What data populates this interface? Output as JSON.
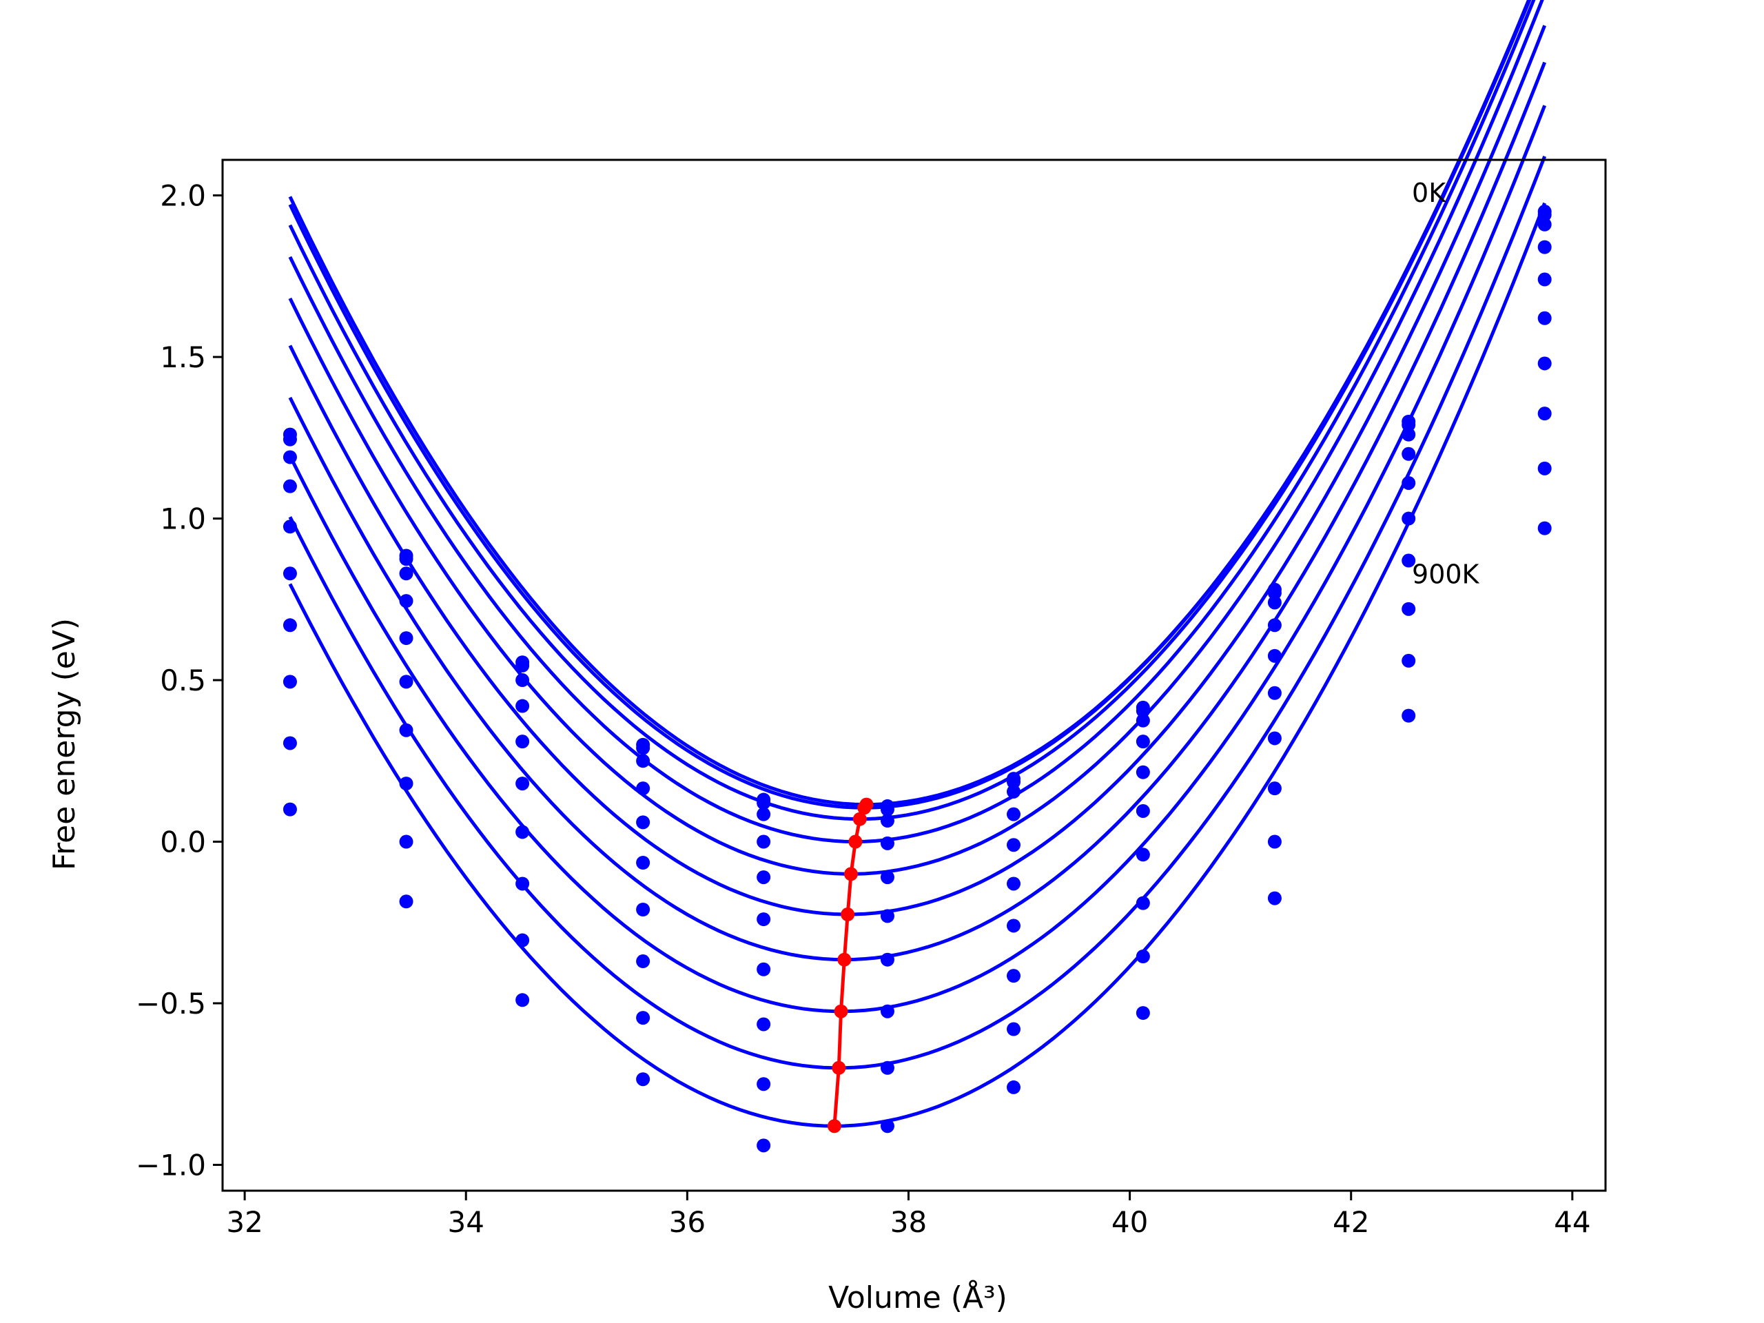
{
  "chart_data": {
    "type": "scatter",
    "xlabel": "Volume (Å³)",
    "ylabel": "Free energy (eV)",
    "xlim": [
      31.8,
      44.3
    ],
    "ylim": [
      -1.08,
      2.11
    ],
    "x_ticks": [
      {
        "value": 32,
        "label": "32"
      },
      {
        "value": 34,
        "label": "34"
      },
      {
        "value": 36,
        "label": "36"
      },
      {
        "value": 38,
        "label": "38"
      },
      {
        "value": 40,
        "label": "40"
      },
      {
        "value": 42,
        "label": "42"
      },
      {
        "value": 44,
        "label": "44"
      }
    ],
    "y_ticks": [
      {
        "value": -1.0,
        "label": "−1.0"
      },
      {
        "value": -0.5,
        "label": "−0.5"
      },
      {
        "value": 0.0,
        "label": "0.0"
      },
      {
        "value": 0.5,
        "label": "0.5"
      },
      {
        "value": 1.0,
        "label": "1.0"
      },
      {
        "value": 1.5,
        "label": "1.5"
      },
      {
        "value": 2.0,
        "label": "2.0"
      }
    ],
    "grid": false,
    "annotations": [
      {
        "text": "0K",
        "x": 42.55,
        "y": 2.01
      },
      {
        "text": "900K",
        "x": 42.55,
        "y": 0.83
      }
    ],
    "volumes": [
      32.41,
      33.46,
      34.51,
      35.6,
      36.69,
      37.81,
      38.95,
      40.12,
      41.31,
      42.52,
      43.75
    ],
    "colors": {
      "fit": "#0000ff",
      "points": "#0000ff",
      "minimum": "#ff0000"
    },
    "series": [
      {
        "fit_min_v": 37.62,
        "fit_min_f": 0.115,
        "fit_curvature": 0.0693,
        "points": [
          1.26,
          0.885,
          0.555,
          0.3,
          0.13,
          0.11,
          0.195,
          0.415,
          0.78,
          1.3,
          1.95
        ]
      },
      {
        "fit_min_v": 37.6,
        "fit_min_f": 0.105,
        "fit_curvature": 0.0693,
        "points": [
          1.245,
          0.875,
          0.545,
          0.29,
          0.12,
          0.1,
          0.185,
          0.405,
          0.77,
          1.29,
          1.94
        ]
      },
      {
        "fit_min_v": 37.56,
        "fit_min_f": 0.07,
        "fit_curvature": 0.0693,
        "points": [
          1.19,
          0.83,
          0.5,
          0.25,
          0.085,
          0.065,
          0.155,
          0.375,
          0.74,
          1.26,
          1.91
        ]
      },
      {
        "fit_min_v": 37.52,
        "fit_min_f": 0.0,
        "fit_curvature": 0.0693,
        "points": [
          1.1,
          0.745,
          0.42,
          0.165,
          0.0,
          -0.005,
          0.085,
          0.31,
          0.67,
          1.2,
          1.84
        ]
      },
      {
        "fit_min_v": 37.48,
        "fit_min_f": -0.1,
        "fit_curvature": 0.0693,
        "points": [
          0.975,
          0.63,
          0.31,
          0.06,
          -0.11,
          -0.11,
          -0.01,
          0.215,
          0.575,
          1.11,
          1.74
        ]
      },
      {
        "fit_min_v": 37.45,
        "fit_min_f": -0.225,
        "fit_curvature": 0.0693,
        "points": [
          0.83,
          0.495,
          0.18,
          -0.065,
          -0.24,
          -0.23,
          -0.13,
          0.095,
          0.46,
          1.0,
          1.62
        ]
      },
      {
        "fit_min_v": 37.42,
        "fit_min_f": -0.365,
        "fit_curvature": 0.0693,
        "points": [
          0.67,
          0.345,
          0.03,
          -0.21,
          -0.395,
          -0.365,
          -0.26,
          -0.04,
          0.32,
          0.87,
          1.48
        ]
      },
      {
        "fit_min_v": 37.39,
        "fit_min_f": -0.525,
        "fit_curvature": 0.0693,
        "points": [
          0.495,
          0.18,
          -0.13,
          -0.37,
          -0.565,
          -0.525,
          -0.415,
          -0.19,
          0.165,
          0.72,
          1.325
        ]
      },
      {
        "fit_min_v": 37.37,
        "fit_min_f": -0.7,
        "fit_curvature": 0.0693,
        "points": [
          0.305,
          0.0,
          -0.305,
          -0.545,
          -0.75,
          -0.7,
          -0.58,
          -0.355,
          0.0,
          0.56,
          1.155
        ]
      },
      {
        "fit_min_v": 37.33,
        "fit_min_f": -0.88,
        "fit_curvature": 0.0693,
        "points": [
          0.1,
          -0.185,
          -0.49,
          -0.735,
          -0.94,
          -0.88,
          -0.76,
          -0.53,
          -0.175,
          0.39,
          0.97
        ]
      }
    ],
    "minimum_curve": {
      "volume": [
        37.62,
        37.6,
        37.56,
        37.52,
        37.48,
        37.45,
        37.42,
        37.39,
        37.37,
        37.33
      ],
      "free_energy": [
        0.115,
        0.105,
        0.07,
        0.0,
        -0.1,
        -0.225,
        -0.365,
        -0.525,
        -0.7,
        -0.88
      ]
    }
  }
}
